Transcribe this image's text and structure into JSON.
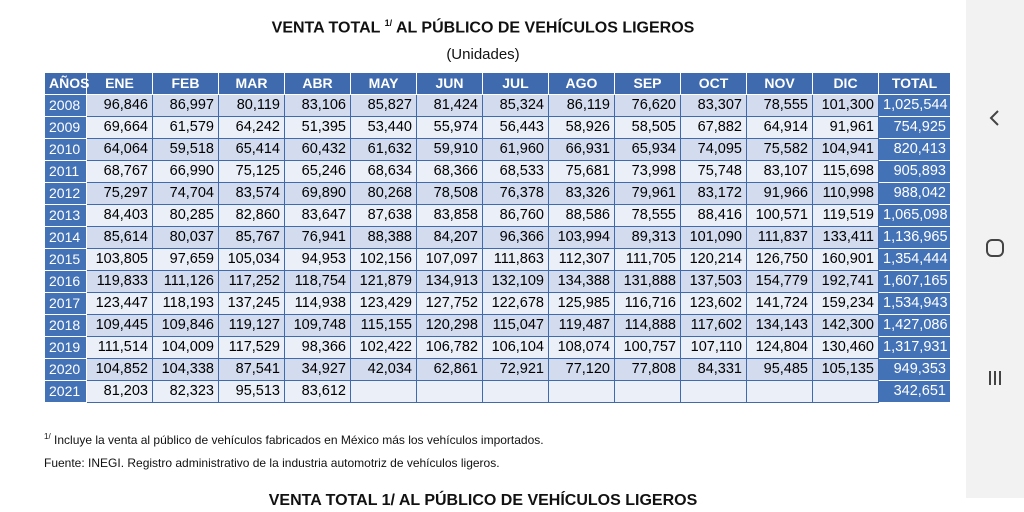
{
  "document": {
    "title_main": "VENTA TOTAL",
    "title_sup": "1/",
    "title_rest": "AL PÚBLICO DE VEHÍCULOS LIGEROS",
    "subtitle": "(Unidades)",
    "headers": [
      "AÑOS",
      "ENE",
      "FEB",
      "MAR",
      "ABR",
      "MAY",
      "JUN",
      "JUL",
      "AGO",
      "SEP",
      "OCT",
      "NOV",
      "DIC",
      "TOTAL"
    ],
    "rows": [
      [
        "2008",
        "96,846",
        "86,997",
        "80,119",
        "83,106",
        "85,827",
        "81,424",
        "85,324",
        "86,119",
        "76,620",
        "83,307",
        "78,555",
        "101,300",
        "1,025,544"
      ],
      [
        "2009",
        "69,664",
        "61,579",
        "64,242",
        "51,395",
        "53,440",
        "55,974",
        "56,443",
        "58,926",
        "58,505",
        "67,882",
        "64,914",
        "91,961",
        "754,925"
      ],
      [
        "2010",
        "64,064",
        "59,518",
        "65,414",
        "60,432",
        "61,632",
        "59,910",
        "61,960",
        "66,931",
        "65,934",
        "74,095",
        "75,582",
        "104,941",
        "820,413"
      ],
      [
        "2011",
        "68,767",
        "66,990",
        "75,125",
        "65,246",
        "68,634",
        "68,366",
        "68,533",
        "75,681",
        "73,998",
        "75,748",
        "83,107",
        "115,698",
        "905,893"
      ],
      [
        "2012",
        "75,297",
        "74,704",
        "83,574",
        "69,890",
        "80,268",
        "78,508",
        "76,378",
        "83,326",
        "79,961",
        "83,172",
        "91,966",
        "110,998",
        "988,042"
      ],
      [
        "2013",
        "84,403",
        "80,285",
        "82,860",
        "83,647",
        "87,638",
        "83,858",
        "86,760",
        "88,586",
        "78,555",
        "88,416",
        "100,571",
        "119,519",
        "1,065,098"
      ],
      [
        "2014",
        "85,614",
        "80,037",
        "85,767",
        "76,941",
        "88,388",
        "84,207",
        "96,366",
        "103,994",
        "89,313",
        "101,090",
        "111,837",
        "133,411",
        "1,136,965"
      ],
      [
        "2015",
        "103,805",
        "97,659",
        "105,034",
        "94,953",
        "102,156",
        "107,097",
        "111,863",
        "112,307",
        "111,705",
        "120,214",
        "126,750",
        "160,901",
        "1,354,444"
      ],
      [
        "2016",
        "119,833",
        "111,126",
        "117,252",
        "118,754",
        "121,879",
        "134,913",
        "132,109",
        "134,388",
        "131,888",
        "137,503",
        "154,779",
        "192,741",
        "1,607,165"
      ],
      [
        "2017",
        "123,447",
        "118,193",
        "137,245",
        "114,938",
        "123,429",
        "127,752",
        "122,678",
        "125,985",
        "116,716",
        "123,602",
        "141,724",
        "159,234",
        "1,534,943"
      ],
      [
        "2018",
        "109,445",
        "109,846",
        "119,127",
        "109,748",
        "115,155",
        "120,298",
        "115,047",
        "119,487",
        "114,888",
        "117,602",
        "134,143",
        "142,300",
        "1,427,086"
      ],
      [
        "2019",
        "111,514",
        "104,009",
        "117,529",
        "98,366",
        "102,422",
        "106,782",
        "106,104",
        "108,074",
        "100,757",
        "107,110",
        "124,804",
        "130,460",
        "1,317,931"
      ],
      [
        "2020",
        "104,852",
        "104,338",
        "87,541",
        "34,927",
        "42,034",
        "62,861",
        "72,921",
        "77,120",
        "77,808",
        "84,331",
        "95,485",
        "105,135",
        "949,353"
      ],
      [
        "2021",
        "81,203",
        "82,323",
        "95,513",
        "83,612",
        "",
        "",
        "",
        "",
        "",
        "",
        "",
        "",
        "342,651"
      ]
    ],
    "note_sup": "1/",
    "note_text": "Incluye la venta al público de vehículos fabricados en México más los vehículos importados.",
    "source": "Fuente: INEGI. Registro administrativo de la industria automotriz de vehículos ligeros.",
    "next_title": "VENTA TOTAL 1/ AL PÚBLICO DE VEHÍCULOS LIGEROS"
  },
  "nav": {
    "back_icon": "chevron-left-icon",
    "home_icon": "circle-home-icon",
    "recents_icon": "three-bars-recents-icon"
  },
  "colors": {
    "header_bg": "#3f6aad",
    "year_bg": "#4472b6",
    "row_odd": "#d2dcee",
    "row_even": "#eaeff8",
    "nav_bg": "#f2f2f2"
  }
}
